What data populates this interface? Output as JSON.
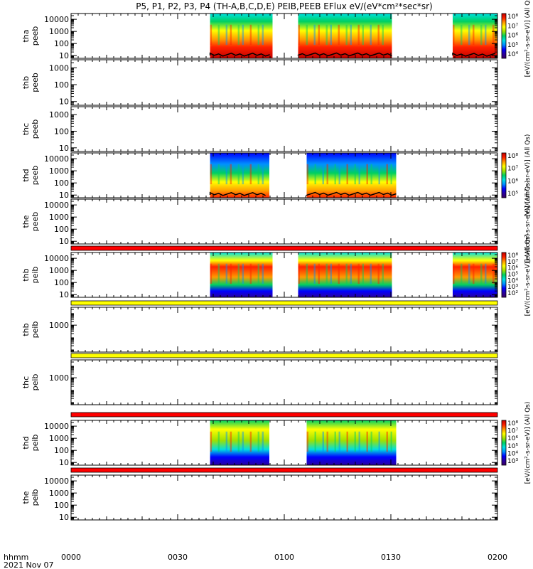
{
  "chart_data": {
    "type": "heatmap",
    "title": "P5, P1, P2, P3, P4 (TH-A,B,C,D,E) PEIB,PEEB EFlux eV/(eV*cm²*sec*sr)",
    "xlabel_lines": [
      "hhmm",
      "2021 Nov 07"
    ],
    "x_ticks": [
      "0000",
      "0030",
      "0100",
      "0130",
      "0200"
    ],
    "x_range_hours": [
      0,
      2
    ],
    "y_scale": "log",
    "panels": [
      {
        "id": "tha-peeb",
        "label": [
          "tha",
          "peeb"
        ],
        "yticks": [
          "10",
          "100",
          "1000",
          "10000"
        ],
        "ylim": [
          6,
          30000
        ],
        "data_intervals": [
          [
            0.652,
            0.945
          ],
          [
            1.065,
            1.505
          ],
          [
            1.79,
            2.0
          ]
        ],
        "bar": "none",
        "colorbar": {
          "ticks": [
            "10⁴",
            "10⁵",
            "10⁶",
            "10⁷",
            "10⁸"
          ],
          "label": "[eV/(cm²-s-sr-eV)] (All Qs)"
        }
      },
      {
        "id": "thb-peeb",
        "label": [
          "thb",
          "peeb"
        ],
        "yticks": [
          "10",
          "100",
          "1000"
        ],
        "ylim": [
          6,
          3000
        ],
        "data_intervals": [],
        "bar": "none"
      },
      {
        "id": "thc-peeb",
        "label": [
          "thc",
          "peeb"
        ],
        "yticks": [
          "10",
          "100",
          "1000"
        ],
        "ylim": [
          6,
          3000
        ],
        "data_intervals": [],
        "bar": "none"
      },
      {
        "id": "thd-peeb",
        "label": [
          "thd",
          "peeb"
        ],
        "yticks": [
          "10",
          "100",
          "1000",
          "10000"
        ],
        "ylim": [
          6,
          30000
        ],
        "data_intervals": [
          [
            0.652,
            0.93
          ],
          [
            1.105,
            1.525
          ]
        ],
        "bar": "none",
        "colorbar": {
          "ticks": [
            "10⁵",
            "10⁶",
            "10⁷",
            "10⁸"
          ],
          "label": "[eV/(cm²-s-sr-eV)] (All Qs)"
        }
      },
      {
        "id": "the-peeb",
        "label": [
          "the",
          "peeb"
        ],
        "yticks": [
          "10",
          "100",
          "1000",
          "10000"
        ],
        "ylim": [
          6,
          30000
        ],
        "data_intervals": [],
        "bar": "red",
        "colorbar": {
          "ticks": [],
          "label": "[eV/(cm²-s-sr-eV)] (All Qs)"
        }
      },
      {
        "id": "thb-peib-top",
        "label": [
          "thb",
          "peib"
        ],
        "yticks": [
          "10",
          "100",
          "1000",
          "10000"
        ],
        "ylim": [
          6,
          30000
        ],
        "data_intervals": [
          [
            0.652,
            0.945
          ],
          [
            1.065,
            1.505
          ],
          [
            1.79,
            2.0
          ]
        ],
        "bar": "yellow",
        "colorbar": {
          "ticks": [
            "10²",
            "10³",
            "10⁴",
            "10⁵",
            "10⁶",
            "10⁷",
            "10⁸"
          ],
          "label": "[eV/(cm²-s-sr-eV)] (All Qs)"
        }
      },
      {
        "id": "thb-peib",
        "label": [
          "thb",
          "peib"
        ],
        "yticks": [
          "1000"
        ],
        "ylim": [
          6,
          30000
        ],
        "data_intervals": [],
        "bar": "yellow"
      },
      {
        "id": "thc-peib",
        "label": [
          "thc",
          "peib"
        ],
        "yticks": [
          "1000"
        ],
        "ylim": [
          6,
          30000
        ],
        "data_intervals": [],
        "bar": "red"
      },
      {
        "id": "thd-peib",
        "label": [
          "thd",
          "peib"
        ],
        "yticks": [
          "10",
          "100",
          "1000",
          "10000"
        ],
        "ylim": [
          6,
          30000
        ],
        "data_intervals": [
          [
            0.652,
            0.93
          ],
          [
            1.105,
            1.525
          ]
        ],
        "bar": "red",
        "colorbar": {
          "ticks": [
            "10³",
            "10⁴",
            "10⁵",
            "10⁶",
            "10⁷",
            "10⁸"
          ],
          "label": "[eV/(cm²-s-sr-eV)] (All Qs)"
        }
      },
      {
        "id": "the-peib",
        "label": [
          "the",
          "peib"
        ],
        "yticks": [
          "10",
          "100",
          "1000",
          "10000"
        ],
        "ylim": [
          6,
          30000
        ],
        "data_intervals": [],
        "bar": "none"
      }
    ],
    "colormap": [
      "#3a0060",
      "#2a00a0",
      "#0000ff",
      "#0090ff",
      "#00e0e0",
      "#00d060",
      "#a0e000",
      "#ffff00",
      "#ff9900",
      "#ff2000",
      "#c00000"
    ]
  }
}
